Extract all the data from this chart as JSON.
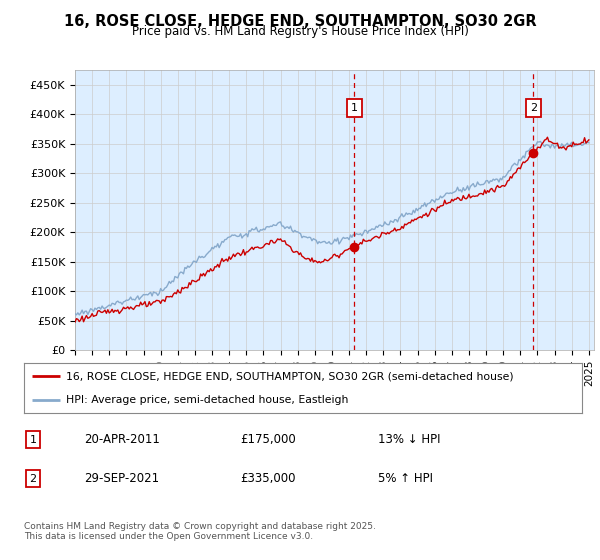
{
  "title": "16, ROSE CLOSE, HEDGE END, SOUTHAMPTON, SO30 2GR",
  "subtitle": "Price paid vs. HM Land Registry's House Price Index (HPI)",
  "legend_line1": "16, ROSE CLOSE, HEDGE END, SOUTHAMPTON, SO30 2GR (semi-detached house)",
  "legend_line2": "HPI: Average price, semi-detached house, Eastleigh",
  "annotation1_date": "20-APR-2011",
  "annotation1_price": "£175,000",
  "annotation1_hpi": "13% ↓ HPI",
  "annotation2_date": "29-SEP-2021",
  "annotation2_price": "£335,000",
  "annotation2_hpi": "5% ↑ HPI",
  "footer": "Contains HM Land Registry data © Crown copyright and database right 2025.\nThis data is licensed under the Open Government Licence v3.0.",
  "line_color_red": "#cc0000",
  "line_color_blue": "#88aacc",
  "plot_bg_color": "#ddeeff",
  "ylim": [
    0,
    475000
  ],
  "yticks": [
    0,
    50000,
    100000,
    150000,
    200000,
    250000,
    300000,
    350000,
    400000,
    450000
  ],
  "ytick_labels": [
    "£0",
    "£50K",
    "£100K",
    "£150K",
    "£200K",
    "£250K",
    "£300K",
    "£350K",
    "£400K",
    "£450K"
  ],
  "sale1_year": 2011.3,
  "sale1_price": 175000,
  "sale2_year": 2021.75,
  "sale2_price": 335000,
  "grid_color": "#cccccc",
  "ann_box_color": "#cc0000"
}
